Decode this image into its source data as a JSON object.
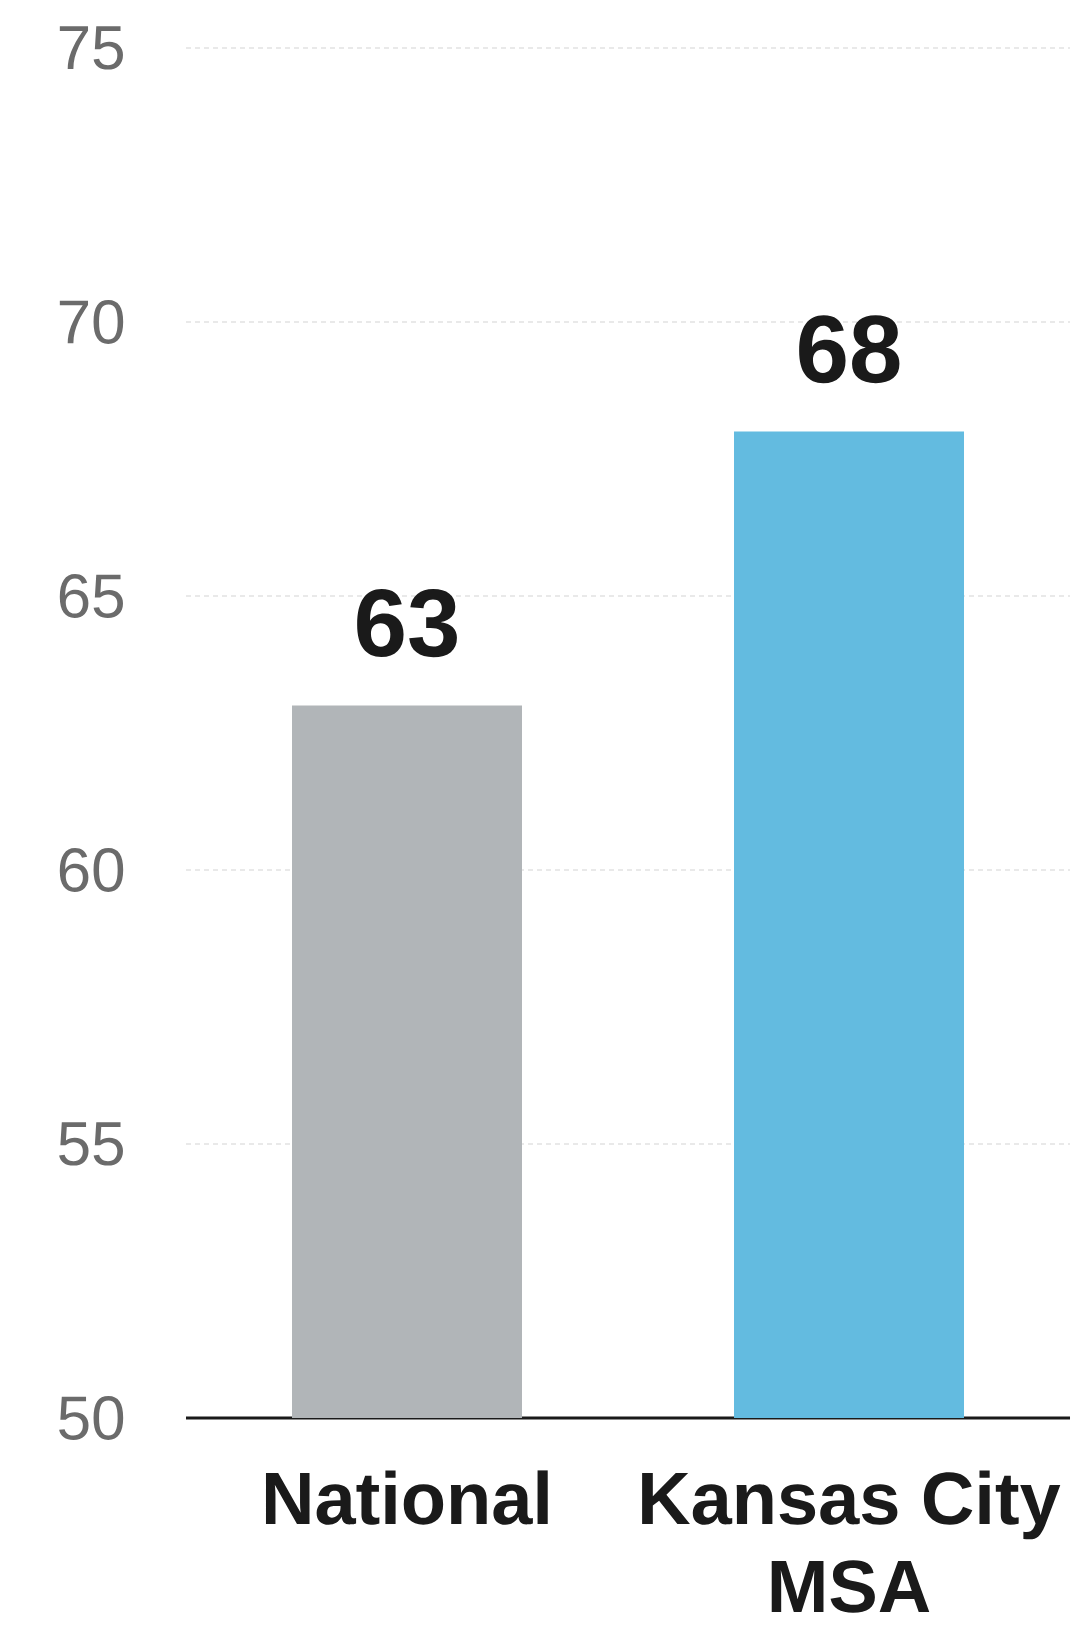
{
  "chart_data": {
    "type": "bar",
    "categories": [
      "National",
      "Kansas City MSA"
    ],
    "values": [
      63,
      68
    ],
    "colors": [
      "#b1b5b8",
      "#63bbe0"
    ],
    "ylim": [
      50,
      75
    ],
    "yticks": [
      50,
      55,
      60,
      65,
      70,
      75
    ],
    "grid": "y",
    "data_labels": true
  }
}
